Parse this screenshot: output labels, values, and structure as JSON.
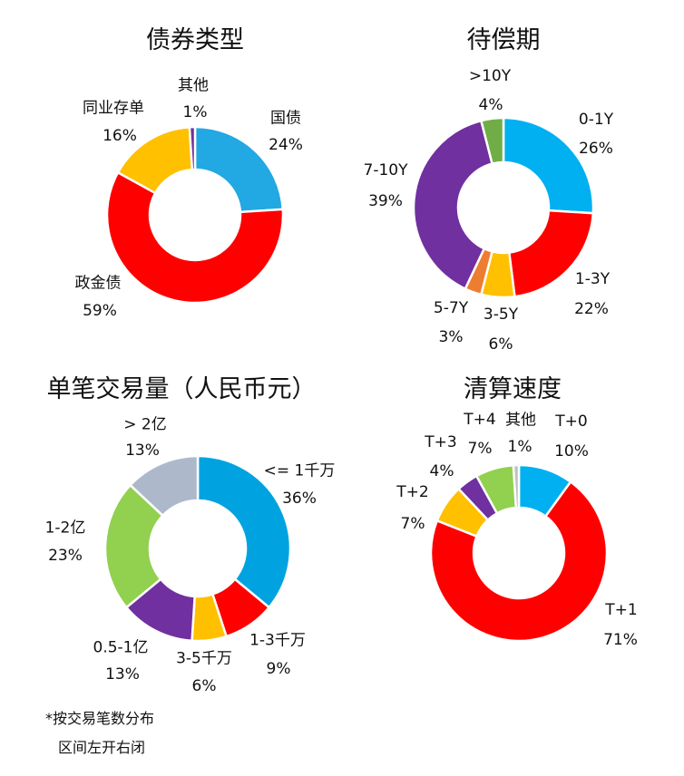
{
  "chart_data": [
    {
      "type": "pie",
      "title": "债券类型",
      "categories": [
        "国债",
        "政金债",
        "同业存单",
        "其他"
      ],
      "values": [
        24,
        59,
        16,
        1
      ],
      "labels": [
        "24%",
        "59%",
        "16%",
        "1%"
      ],
      "colors": [
        "#22A8E3",
        "#FF0000",
        "#FFC000",
        "#7030A0"
      ]
    },
    {
      "type": "pie",
      "title": "待偿期",
      "categories": [
        "0-1Y",
        "1-3Y",
        "3-5Y",
        "5-7Y",
        "7-10Y",
        ">10Y"
      ],
      "values": [
        26,
        22,
        6,
        3,
        39,
        4
      ],
      "labels": [
        "26%",
        "22%",
        "6%",
        "3%",
        "39%",
        "4%"
      ],
      "colors": [
        "#00B0F0",
        "#FF0000",
        "#FFC000",
        "#ED7D31",
        "#7030A0",
        "#70AD47"
      ]
    },
    {
      "type": "pie",
      "title": "单笔交易量（人民币元）",
      "categories": [
        "<= 1千万",
        "1-3千万",
        "3-5千万",
        "0.5-1亿",
        "1-2亿",
        "> 2亿"
      ],
      "values": [
        36,
        9,
        6,
        13,
        23,
        13
      ],
      "labels": [
        "36%",
        "9%",
        "6%",
        "13%",
        "23%",
        "13%"
      ],
      "colors": [
        "#00A3E0",
        "#FF0000",
        "#FFC000",
        "#7030A0",
        "#92D050",
        "#ADB9CA"
      ],
      "notes": [
        "*按交易笔数分布",
        "区间左开右闭"
      ]
    },
    {
      "type": "pie",
      "title": "清算速度",
      "categories": [
        "T+0",
        "T+1",
        "T+2",
        "T+3",
        "T+4",
        "其他"
      ],
      "values": [
        10,
        71,
        7,
        4,
        7,
        1
      ],
      "labels": [
        "10%",
        "71%",
        "7%",
        "4%",
        "7%",
        "1%"
      ],
      "colors": [
        "#00B0F0",
        "#FF0000",
        "#FFC000",
        "#7030A0",
        "#92D050",
        "#BFBFBF"
      ]
    }
  ]
}
